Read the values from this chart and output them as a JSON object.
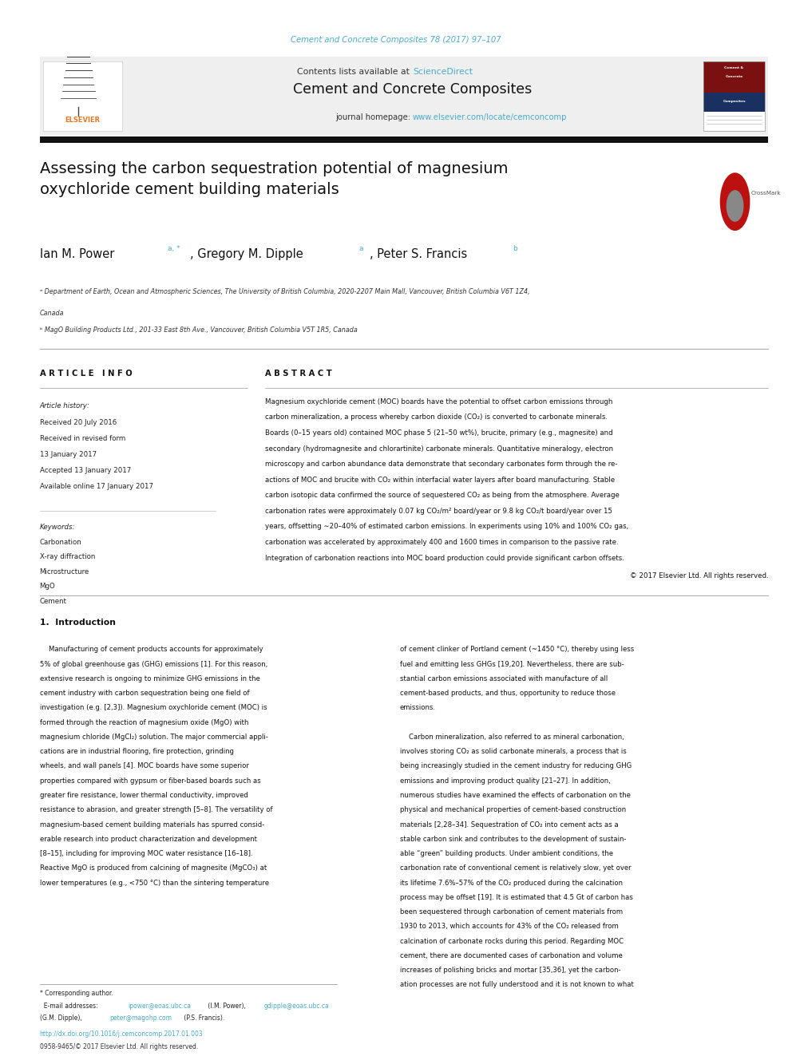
{
  "bg_color": "#ffffff",
  "page_width": 9.92,
  "page_height": 13.23,
  "journal_ref_text": "Cement and Concrete Composites 78 (2017) 97–107",
  "journal_ref_color": "#4bacc6",
  "header_bg": "#f0f0f0",
  "sciencedirect_color": "#4bacc6",
  "journal_title": "Cement and Concrete Composites",
  "homepage_url": "www.elsevier.com/locate/cemconcomp",
  "homepage_url_color": "#4bacc6",
  "article_title": "Assessing the carbon sequestration potential of magnesium\noxychloride cement building materials",
  "section_art_info": "A R T I C L E   I N F O",
  "section_abstract": "A B S T R A C T",
  "keywords": [
    "Carbonation",
    "X-ray diffraction",
    "Microstructure",
    "MgO",
    "Cement"
  ],
  "abstract_text": "Magnesium oxychloride cement (MOC) boards have the potential to offset carbon emissions through carbon mineralization, a process whereby carbon dioxide (CO₂) is converted to carbonate minerals. Boards (0–15 years old) contained MOC phase 5 (21–50 wt%), brucite, primary (e.g., magnesite) and secondary (hydromagnesite and chlorartinite) carbonate minerals. Quantitative mineralogy, electron microscopy and carbon abundance data demonstrate that secondary carbonates form through the re-actions of MOC and brucite with CO₂ within interfacial water layers after board manufacturing. Stable carbon isotopic data confirmed the source of sequestered CO₂ as being from the atmosphere. Average carbonation rates were approximately 0.07 kg CO₂/m² board/year or 9.8 kg CO₂/t board/year over 15 years, offsetting ∼20–40% of estimated carbon emissions. In experiments using 10% and 100% CO₂ gas, carbonation was accelerated by approximately 400 and 1600 times in comparison to the passive rate. Integration of carbonation reactions into MOC board production could provide significant carbon offsets.",
  "doi_text": "http://dx.doi.org/10.1016/j.cemconcomp.2017.01.003",
  "issn_text": "0958-9465/© 2017 Elsevier Ltd. All rights reserved.",
  "elsevier_orange": "#e87722",
  "link_color": "#4bacc6",
  "intro_text1_lines": [
    "    Manufacturing of cement products accounts for approximately",
    "5% of global greenhouse gas (GHG) emissions [1]. For this reason,",
    "extensive research is ongoing to minimize GHG emissions in the",
    "cement industry with carbon sequestration being one field of",
    "investigation (e.g. [2,3]). Magnesium oxychloride cement (MOC) is",
    "formed through the reaction of magnesium oxide (MgO) with",
    "magnesium chloride (MgCl₂) solution. The major commercial appli-",
    "cations are in industrial flooring, fire protection, grinding",
    "wheels, and wall panels [4]. MOC boards have some superior",
    "properties compared with gypsum or fiber-based boards such as",
    "greater fire resistance, lower thermal conductivity, improved",
    "resistance to abrasion, and greater strength [5–8]. The versatility of",
    "magnesium-based cement building materials has spurred consid-",
    "erable research into product characterization and development",
    "[8–15], including for improving MOC water resistance [16–18].",
    "Reactive MgO is produced from calcining of magnesite (MgCO₃) at",
    "lower temperatures (e.g., <750 °C) than the sintering temperature"
  ],
  "intro_text2_lines": [
    "of cement clinker of Portland cement (~1450 °C), thereby using less",
    "fuel and emitting less GHGs [19,20]. Nevertheless, there are sub-",
    "stantial carbon emissions associated with manufacture of all",
    "cement-based products, and thus, opportunity to reduce those",
    "emissions.",
    "",
    "    Carbon mineralization, also referred to as mineral carbonation,",
    "involves storing CO₂ as solid carbonate minerals, a process that is",
    "being increasingly studied in the cement industry for reducing GHG",
    "emissions and improving product quality [21–27]. In addition,",
    "numerous studies have examined the effects of carbonation on the",
    "physical and mechanical properties of cement-based construction",
    "materials [2,28–34]. Sequestration of CO₂ into cement acts as a",
    "stable carbon sink and contributes to the development of sustain-",
    "able “green” building products. Under ambient conditions, the",
    "carbonation rate of conventional cement is relatively slow, yet over",
    "its lifetime 7.6%–57% of the CO₂ produced during the calcination",
    "process may be offset [19]. It is estimated that 4.5 Gt of carbon has",
    "been sequestered through carbonation of cement materials from",
    "1930 to 2013, which accounts for 43% of the CO₂ released from",
    "calcination of carbonate rocks during this period. Regarding MOC",
    "cement, there are documented cases of carbonation and volume",
    "increases of polishing bricks and mortar [35,36], yet the carbon-",
    "ation processes are not fully understood and it is not known to what"
  ]
}
